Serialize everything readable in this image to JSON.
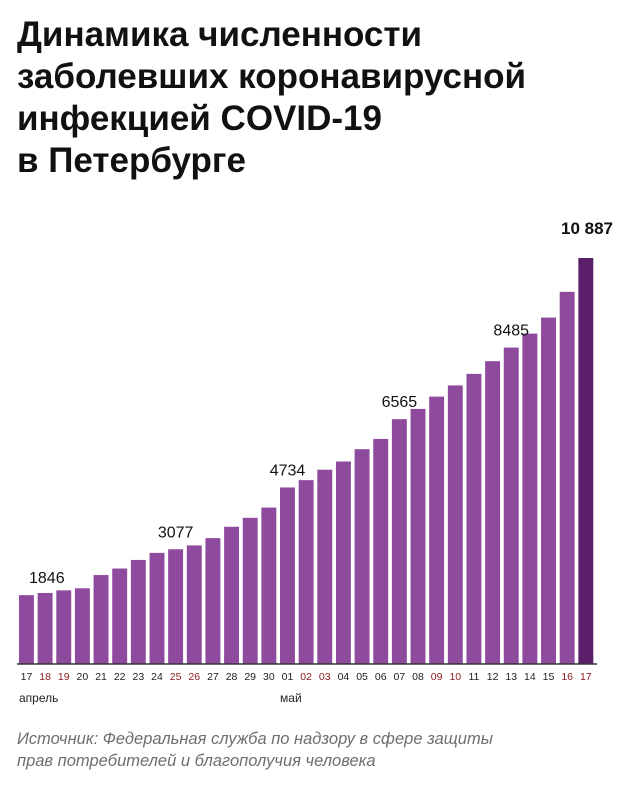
{
  "title_lines": [
    "Динамика численности",
    "заболевших коронавирусной",
    "инфекцией COVID-19",
    "в Петербурге"
  ],
  "source_lines": [
    "Источник: Федеральная служба по надзору в сфере защиты",
    "прав потребителей и благополучия человека"
  ],
  "colors": {
    "bar": "#8e4a9d",
    "bar_last": "#5b1f6a",
    "tick_normal": "#222222",
    "tick_weekend": "#8b1a1a",
    "axis": "#333333"
  },
  "chart_data": {
    "type": "bar",
    "x": [
      "17",
      "18",
      "19",
      "20",
      "21",
      "22",
      "23",
      "24",
      "25",
      "26",
      "27",
      "28",
      "29",
      "30",
      "01",
      "02",
      "03",
      "04",
      "05",
      "06",
      "07",
      "08",
      "09",
      "10",
      "11",
      "12",
      "13",
      "14",
      "15",
      "16",
      "17"
    ],
    "weekend": [
      false,
      true,
      true,
      false,
      false,
      false,
      false,
      false,
      true,
      true,
      false,
      false,
      false,
      false,
      false,
      true,
      true,
      false,
      false,
      false,
      false,
      false,
      true,
      true,
      false,
      false,
      false,
      false,
      false,
      true,
      true
    ],
    "values": [
      1846,
      1905,
      1975,
      2030,
      2385,
      2560,
      2790,
      2980,
      3077,
      3180,
      3375,
      3680,
      3920,
      4195,
      4734,
      4930,
      5210,
      5430,
      5760,
      6035,
      6565,
      6840,
      7170,
      7470,
      7780,
      8120,
      8485,
      8860,
      9290,
      9980,
      10887
    ],
    "labels": [
      {
        "index": 0,
        "text": "1846"
      },
      {
        "index": 8,
        "text": "3077"
      },
      {
        "index": 14,
        "text": "4734"
      },
      {
        "index": 20,
        "text": "6565"
      },
      {
        "index": 26,
        "text": "8485"
      },
      {
        "index": 30,
        "text": "10 887"
      }
    ],
    "month_labels": [
      {
        "index": 0,
        "text": "апрель"
      },
      {
        "index": 14,
        "text": "май"
      }
    ],
    "ylim": [
      0,
      10887
    ],
    "grid": false,
    "title": "Динамика численности заболевших коронавирусной инфекцией COVID-19 в Петербурге"
  }
}
